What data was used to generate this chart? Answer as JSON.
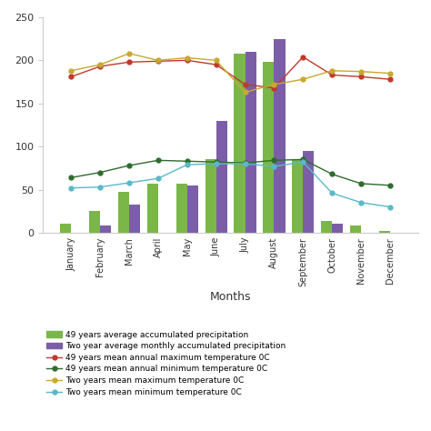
{
  "months": [
    "January",
    "February",
    "March",
    "April",
    "May",
    "June",
    "July",
    "August",
    "September",
    "October",
    "November",
    "December"
  ],
  "precip_49yr": [
    10,
    25,
    47,
    57,
    57,
    85,
    208,
    198,
    85,
    14,
    8,
    2
  ],
  "precip_2yr": [
    0,
    8,
    33,
    0,
    55,
    130,
    210,
    225,
    95,
    10,
    0,
    0
  ],
  "max_temp_49yr": [
    181,
    193,
    198,
    199,
    200,
    195,
    172,
    168,
    204,
    183,
    181,
    178
  ],
  "min_temp_49yr": [
    64,
    70,
    78,
    84,
    83,
    82,
    81,
    84,
    85,
    68,
    57,
    55
  ],
  "max_temp_2yr": [
    188,
    195,
    208,
    200,
    203,
    200,
    163,
    172,
    178,
    188,
    187,
    185
  ],
  "min_temp_2yr": [
    52,
    53,
    58,
    63,
    79,
    80,
    80,
    77,
    82,
    46,
    35,
    30
  ],
  "bar_color_49yr": "#7ab648",
  "bar_color_2yr": "#7b5ea7",
  "line_color_max49": "#c0392b",
  "line_color_min49": "#2e6b2e",
  "line_color_max2": "#c8a830",
  "line_color_min2": "#5ab8c8",
  "ylim": [
    0,
    250
  ],
  "yticks": [
    0,
    50,
    100,
    150,
    200,
    250
  ],
  "xlabel": "Months",
  "legend_labels": [
    "49 years average accumulated precipitation",
    "Two year average monthly accumulated precipitation",
    "49 years mean annual maximum temperature 0C",
    "49 years mean annual minimum temperature 0C",
    "Two years mean maximum temperature 0C",
    "Two years mean minimum temperature 0C"
  ],
  "background_color": "#f5f5f0"
}
